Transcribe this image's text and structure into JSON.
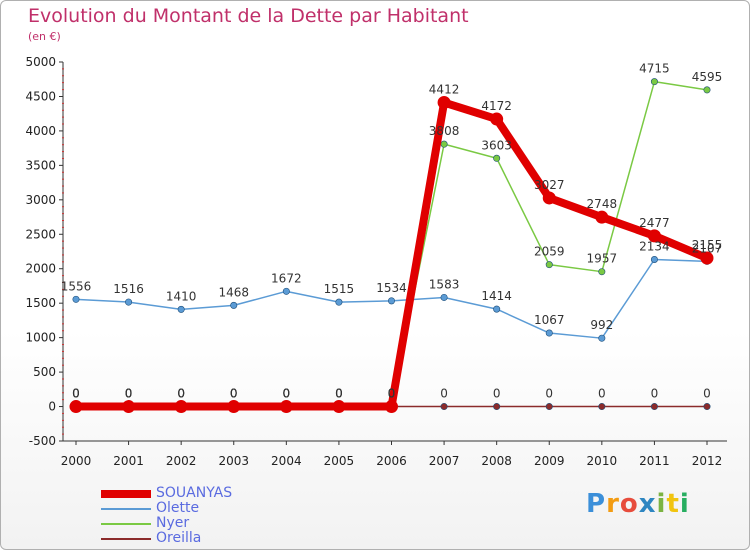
{
  "chart_data": {
    "type": "line",
    "title": "Evolution du Montant de la Dette par Habitant",
    "subtitle": "(en €)",
    "categories": [
      "2000",
      "2001",
      "2002",
      "2003",
      "2004",
      "2005",
      "2006",
      "2007",
      "2008",
      "2009",
      "2010",
      "2011",
      "2012"
    ],
    "y_ticks": [
      -500,
      0,
      500,
      1000,
      1500,
      2000,
      2500,
      3000,
      3500,
      4000,
      4500,
      5000
    ],
    "ylim": [
      -500,
      5000
    ],
    "grid": false,
    "legend_position": "bottom-left",
    "series": [
      {
        "name": "SOUANYAS",
        "color": "#e00000",
        "values": [
          0,
          0,
          0,
          0,
          0,
          0,
          0,
          4412,
          4172,
          3027,
          2748,
          2477,
          2155
        ]
      },
      {
        "name": "Olette",
        "color": "#5b9bd5",
        "values": [
          1556,
          1516,
          1410,
          1468,
          1672,
          1515,
          1534,
          1583,
          1414,
          1067,
          992,
          2134,
          2107
        ]
      },
      {
        "name": "Nyer",
        "color": "#7ac943",
        "values": [
          0,
          0,
          0,
          0,
          0,
          0,
          0,
          3808,
          3603,
          2059,
          1957,
          4715,
          4595
        ]
      },
      {
        "name": "Oreilla",
        "color": "#8b2b2b",
        "values": [
          0,
          0,
          0,
          0,
          0,
          0,
          0,
          0,
          0,
          0,
          0,
          0,
          0
        ]
      }
    ],
    "labels": [
      [
        "0",
        "0",
        "0",
        "0",
        "0",
        "0",
        "0",
        "4412",
        "4172",
        "3027",
        "2748",
        "2477",
        "2155"
      ],
      [
        "1556",
        "1516",
        "1410",
        "1468",
        "1672",
        "1515",
        "1534",
        "1583",
        "1414",
        "1067",
        "992",
        "2134",
        "2107"
      ],
      [
        "0",
        "0",
        "0",
        "0",
        "0",
        "0",
        "0",
        "3808",
        "3603",
        "2059",
        "1957",
        "4715",
        "4595"
      ],
      [
        "0",
        "0",
        "0",
        "0",
        "0",
        "0",
        "0",
        "0",
        "0",
        "0",
        "0",
        "0",
        "0"
      ]
    ]
  },
  "brand": {
    "text": "Proxiti",
    "letters": [
      "P",
      "r",
      "o",
      "x",
      "i",
      "t",
      "i"
    ],
    "colors": [
      "#3b8fd9",
      "#f39c12",
      "#e74c3c",
      "#2e86c1",
      "#7cb342",
      "#f1c40f",
      "#27ae60"
    ]
  }
}
